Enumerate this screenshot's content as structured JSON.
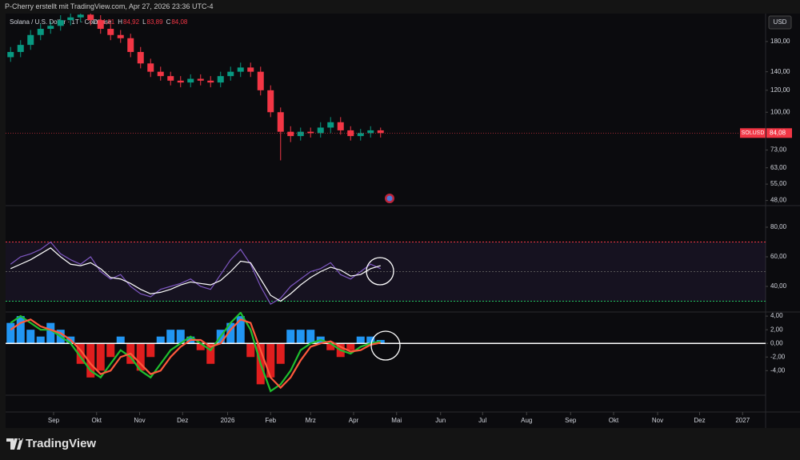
{
  "header": {
    "credit": "P-Cherry erstellt mit TradingView.com, Apr 27, 2026 23:36 UTC-4"
  },
  "chart_data": [
    {
      "type": "candlestick",
      "title": "Solana / U.S. Dollar · 1T · Coinbase",
      "ohlc_legend": [
        {
          "label": "O",
          "value": "84,81"
        },
        {
          "label": "H",
          "value": "84,92"
        },
        {
          "label": "L",
          "value": "83,89"
        },
        {
          "label": "C",
          "value": "84,08"
        }
      ],
      "currency": "USD",
      "log_scale": true,
      "up_color": "#089981",
      "down_color": "#f23645",
      "open": [
        158,
        165,
        175,
        190,
        200,
        205,
        215,
        220,
        225,
        215,
        200,
        190,
        185,
        165,
        150,
        140,
        135,
        130,
        128,
        132,
        130,
        128,
        135,
        140,
        145,
        140,
        120,
        100,
        85,
        82,
        85,
        84,
        88,
        92,
        86,
        82,
        84,
        86
      ],
      "high": [
        172,
        182,
        198,
        208,
        213,
        224,
        229,
        234,
        234,
        224,
        208,
        198,
        192,
        172,
        156,
        146,
        140,
        135,
        137,
        137,
        135,
        140,
        146,
        151,
        151,
        146,
        125,
        104,
        89,
        88,
        88,
        92,
        96,
        96,
        89,
        87,
        89,
        88
      ],
      "low": [
        152,
        158,
        168,
        182,
        192,
        197,
        206,
        211,
        206,
        192,
        182,
        178,
        158,
        144,
        134,
        130,
        125,
        123,
        123,
        125,
        123,
        123,
        130,
        134,
        134,
        115,
        96,
        67,
        78,
        79,
        81,
        81,
        84,
        83,
        79,
        79,
        81,
        81
      ],
      "close": [
        165,
        175,
        190,
        200,
        205,
        215,
        220,
        225,
        215,
        200,
        190,
        185,
        165,
        150,
        140,
        135,
        130,
        128,
        132,
        130,
        128,
        135,
        140,
        145,
        140,
        120,
        100,
        85,
        82,
        85,
        84,
        88,
        92,
        86,
        82,
        84,
        86,
        84.08
      ],
      "price_tag": {
        "name": "SOLUSD",
        "value": 84.08,
        "label": "84,08"
      },
      "ylim": [
        46,
        227
      ],
      "yticks": [
        {
          "value": 180,
          "label": "180,00"
        },
        {
          "value": 140,
          "label": "140,00"
        },
        {
          "value": 120,
          "label": "120,00"
        },
        {
          "value": 100,
          "label": "100,00"
        },
        {
          "value": 73,
          "label": "73,00"
        },
        {
          "value": 63,
          "label": "63,00"
        },
        {
          "value": 55,
          "label": "55,00"
        },
        {
          "value": 48,
          "label": "48,00"
        }
      ],
      "xlim": [
        -0.5,
        75.5
      ],
      "xticks": [
        {
          "value": 4.3,
          "label": "Sep"
        },
        {
          "value": 8.6,
          "label": "Okt"
        },
        {
          "value": 12.9,
          "label": "Nov"
        },
        {
          "value": 17.2,
          "label": "Dez"
        },
        {
          "value": 21.7,
          "label": "2026"
        },
        {
          "value": 26,
          "label": "Feb"
        },
        {
          "value": 30,
          "label": "Mrz"
        },
        {
          "value": 34.3,
          "label": "Apr"
        },
        {
          "value": 38.6,
          "label": "Mai"
        },
        {
          "value": 43,
          "label": "Jun"
        },
        {
          "value": 47.2,
          "label": "Jul"
        },
        {
          "value": 51.6,
          "label": "Aug"
        },
        {
          "value": 56,
          "label": "Sep"
        },
        {
          "value": 60.3,
          "label": "Okt"
        },
        {
          "value": 64.7,
          "label": "Nov"
        },
        {
          "value": 68.9,
          "label": "Dez"
        },
        {
          "value": 73.2,
          "label": "2027"
        }
      ]
    },
    {
      "type": "line",
      "ylim": [
        22.7,
        94.6
      ],
      "yticks": [
        {
          "value": 80,
          "label": "80,00"
        },
        {
          "value": 60,
          "label": "60,00"
        },
        {
          "value": 40,
          "label": "40,00"
        }
      ],
      "bands": [
        {
          "value": 70,
          "color": "#f23645"
        },
        {
          "value": 50,
          "color": "#555555"
        },
        {
          "value": 30,
          "color": "#22c55e"
        }
      ],
      "band_fill": "rgba(126,87,194,0.10)",
      "series": [
        {
          "color": "#7e57c2",
          "values": [
            55,
            60,
            62,
            65,
            70,
            62,
            58,
            55,
            60,
            50,
            45,
            48,
            40,
            35,
            33,
            38,
            40,
            42,
            45,
            40,
            38,
            48,
            58,
            65,
            55,
            40,
            28,
            32,
            40,
            45,
            50,
            52,
            56,
            48,
            45,
            50,
            55,
            52
          ]
        },
        {
          "color": "#ffffff",
          "values": [
            52,
            55,
            58,
            62,
            66,
            60,
            55,
            54,
            56,
            52,
            46,
            45,
            42,
            38,
            35,
            36,
            38,
            41,
            43,
            42,
            41,
            44,
            50,
            57,
            56,
            45,
            34,
            30,
            35,
            41,
            46,
            50,
            53,
            51,
            47,
            48,
            52,
            54
          ]
        }
      ]
    },
    {
      "type": "histogram-lines",
      "ylim": [
        -7.6,
        4.6
      ],
      "yticks": [
        {
          "value": 4,
          "label": "4,00"
        },
        {
          "value": 2,
          "label": "2,00"
        },
        {
          "value": 0,
          "label": "0,00"
        },
        {
          "value": -2,
          "label": "-2,00"
        },
        {
          "value": -4,
          "label": "-4,00"
        }
      ],
      "up_color": "#2196f3",
      "down_color": "#e01e1e",
      "zero_color": "#ffffff",
      "values": [
        3,
        4,
        2,
        1,
        3,
        2,
        1,
        -3,
        -5,
        -4,
        -2,
        1,
        -3,
        -4,
        -2,
        1,
        2,
        2,
        1,
        -1,
        -3,
        2,
        3,
        4,
        -2,
        -6,
        -5,
        -3,
        2,
        2,
        2,
        1,
        -1,
        -2,
        -1,
        1,
        1,
        0.5
      ],
      "series": [
        {
          "color": "#1fbf2f",
          "values": [
            3,
            4,
            3,
            2,
            2,
            1,
            0,
            -2,
            -4,
            -5,
            -3,
            -1,
            -2,
            -4,
            -5,
            -3,
            -1,
            0,
            1,
            0,
            -1,
            1,
            3,
            4.5,
            2,
            -3,
            -7,
            -6,
            -4,
            -1,
            0,
            0.5,
            0,
            -1,
            -1.5,
            -0.5,
            0,
            0.3
          ]
        },
        {
          "color": "#ff5a3c",
          "values": [
            2,
            3,
            3.5,
            2.5,
            2,
            1.5,
            0.5,
            -1,
            -3,
            -4.5,
            -4,
            -2,
            -1.5,
            -3,
            -4.5,
            -4,
            -2,
            -0.5,
            0.5,
            0.5,
            -0.5,
            0,
            2,
            3.5,
            3,
            -1,
            -5,
            -6.5,
            -5,
            -2.5,
            -0.5,
            0,
            0.3,
            -0.5,
            -1.2,
            -1,
            -0.2,
            0.1
          ]
        }
      ]
    }
  ],
  "footer": {
    "brand": "TradingView"
  }
}
